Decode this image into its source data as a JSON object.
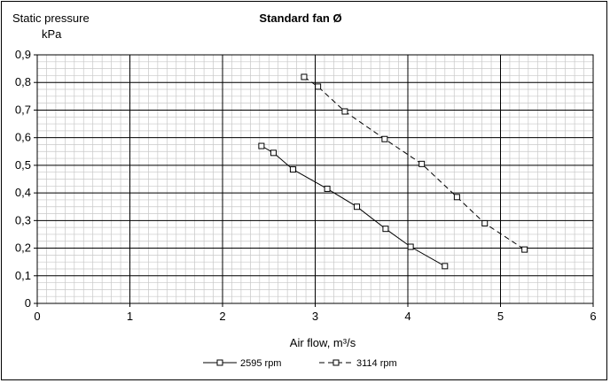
{
  "chart_data": {
    "type": "line",
    "title": "Standard fan Ø",
    "ylabel_line1": "Static pressure",
    "ylabel_line2": "kPa",
    "xlabel": "Air flow, m³/s",
    "xlim": [
      0,
      6
    ],
    "ylim": [
      0,
      0.9
    ],
    "x_ticks": [
      "0",
      "1",
      "2",
      "3",
      "4",
      "5",
      "6"
    ],
    "y_ticks": [
      "0",
      "0,1",
      "0,2",
      "0,3",
      "0,4",
      "0,5",
      "0,6",
      "0,7",
      "0,8",
      "0,9"
    ],
    "grid": true,
    "legend_position": "bottom",
    "series": [
      {
        "name": "2595 rpm",
        "style": "solid",
        "color": "#000000",
        "points": [
          {
            "x": 2.42,
            "y": 0.57
          },
          {
            "x": 2.55,
            "y": 0.545
          },
          {
            "x": 2.76,
            "y": 0.485
          },
          {
            "x": 3.13,
            "y": 0.415
          },
          {
            "x": 3.45,
            "y": 0.35
          },
          {
            "x": 3.76,
            "y": 0.27
          },
          {
            "x": 4.03,
            "y": 0.205
          },
          {
            "x": 4.4,
            "y": 0.135
          }
        ]
      },
      {
        "name": "3114 rpm",
        "style": "dashed",
        "color": "#000000",
        "points": [
          {
            "x": 2.88,
            "y": 0.82
          },
          {
            "x": 3.03,
            "y": 0.785
          },
          {
            "x": 3.32,
            "y": 0.695
          },
          {
            "x": 3.75,
            "y": 0.595
          },
          {
            "x": 4.15,
            "y": 0.505
          },
          {
            "x": 4.53,
            "y": 0.385
          },
          {
            "x": 4.83,
            "y": 0.29
          },
          {
            "x": 5.26,
            "y": 0.195
          }
        ]
      }
    ]
  }
}
